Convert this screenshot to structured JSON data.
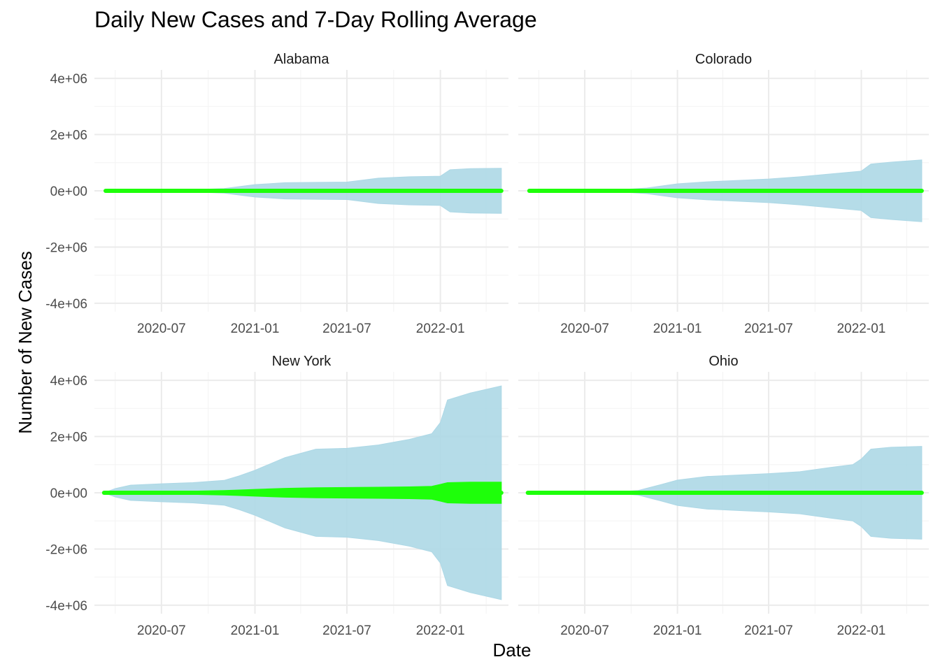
{
  "chart_data": {
    "type": "area",
    "title": "Daily New Cases and 7-Day Rolling Average",
    "xlabel": "Date",
    "ylabel": "Number of New Cases",
    "x_ticks": [
      "2020-07",
      "2021-01",
      "2021-07",
      "2022-01"
    ],
    "y_ticks": [
      "-4e+06",
      "-2e+06",
      "0e+00",
      "2e+06",
      "4e+06"
    ],
    "y_tick_values": [
      -4000000,
      -2000000,
      0,
      2000000,
      4000000
    ],
    "ylim": [
      -4300000,
      4300000
    ],
    "xlim": [
      "2020-02-20",
      "2022-05-15"
    ],
    "grid": true,
    "layout": "facet 2x2, shared axes",
    "series": [
      {
        "name": "Daily New Cases",
        "style": "band",
        "color": "#ADD8E6"
      },
      {
        "name": "7-Day Rolling Average",
        "style": "band",
        "color": "#1EFF0A"
      }
    ],
    "panels": [
      {
        "facet": "Alabama",
        "x": [
          "2020-03-13",
          "2020-05-01",
          "2020-07-01",
          "2020-09-01",
          "2020-11-01",
          "2021-01-01",
          "2021-03-01",
          "2021-05-01",
          "2021-07-01",
          "2021-09-01",
          "2021-11-01",
          "2022-01-01",
          "2022-01-20",
          "2022-03-01",
          "2022-05-01"
        ],
        "daily_band": [
          0,
          5000,
          20000,
          40000,
          80000,
          220000,
          290000,
          300000,
          310000,
          450000,
          500000,
          520000,
          750000,
          790000,
          800000
        ],
        "rolling_band": [
          0,
          2000,
          5000,
          8000,
          12000,
          22000,
          25000,
          26000,
          27000,
          32000,
          35000,
          36000,
          45000,
          48000,
          48000
        ]
      },
      {
        "facet": "Colorado",
        "x": [
          "2020-03-13",
          "2020-05-01",
          "2020-07-01",
          "2020-09-01",
          "2020-11-01",
          "2021-01-01",
          "2021-03-01",
          "2021-05-01",
          "2021-07-01",
          "2021-09-01",
          "2021-11-01",
          "2022-01-01",
          "2022-01-20",
          "2022-03-01",
          "2022-05-01"
        ],
        "daily_band": [
          0,
          5000,
          15000,
          30000,
          100000,
          250000,
          320000,
          370000,
          420000,
          500000,
          600000,
          700000,
          950000,
          1020000,
          1100000
        ],
        "rolling_band": [
          0,
          2000,
          4000,
          6000,
          12000,
          22000,
          25000,
          27000,
          30000,
          33000,
          36000,
          40000,
          48000,
          50000,
          50000
        ]
      },
      {
        "facet": "New York",
        "x": [
          "2020-03-10",
          "2020-04-01",
          "2020-05-01",
          "2020-07-01",
          "2020-09-01",
          "2020-11-01",
          "2020-12-01",
          "2021-01-01",
          "2021-03-01",
          "2021-05-01",
          "2021-07-01",
          "2021-09-01",
          "2021-11-01",
          "2021-12-15",
          "2022-01-01",
          "2022-01-15",
          "2022-03-01",
          "2022-05-01"
        ],
        "daily_band": [
          0,
          150000,
          270000,
          320000,
          360000,
          440000,
          600000,
          800000,
          1250000,
          1550000,
          1580000,
          1700000,
          1900000,
          2100000,
          2500000,
          3300000,
          3550000,
          3800000
        ],
        "rolling_band": [
          20000,
          30000,
          40000,
          50000,
          60000,
          80000,
          100000,
          120000,
          160000,
          180000,
          190000,
          200000,
          210000,
          230000,
          300000,
          360000,
          380000,
          380000
        ]
      },
      {
        "facet": "Ohio",
        "x": [
          "2020-03-10",
          "2020-05-01",
          "2020-07-01",
          "2020-09-01",
          "2020-10-15",
          "2020-12-01",
          "2021-01-01",
          "2021-03-01",
          "2021-05-01",
          "2021-07-01",
          "2021-09-01",
          "2021-11-01",
          "2021-12-15",
          "2022-01-01",
          "2022-01-20",
          "2022-03-01",
          "2022-05-01"
        ],
        "daily_band": [
          0,
          5000,
          15000,
          30000,
          80000,
          300000,
          450000,
          580000,
          630000,
          680000,
          750000,
          900000,
          1000000,
          1200000,
          1550000,
          1620000,
          1650000
        ],
        "rolling_band": [
          0,
          5000,
          8000,
          10000,
          15000,
          25000,
          35000,
          40000,
          42000,
          45000,
          48000,
          52000,
          55000,
          58000,
          62000,
          62000,
          62000
        ]
      }
    ]
  },
  "colors": {
    "daily_band": "#ADD8E6",
    "rolling_band": "#1EFF0A",
    "grid_major": "#EBEBEB",
    "grid_minor": "#F3F3F3"
  }
}
